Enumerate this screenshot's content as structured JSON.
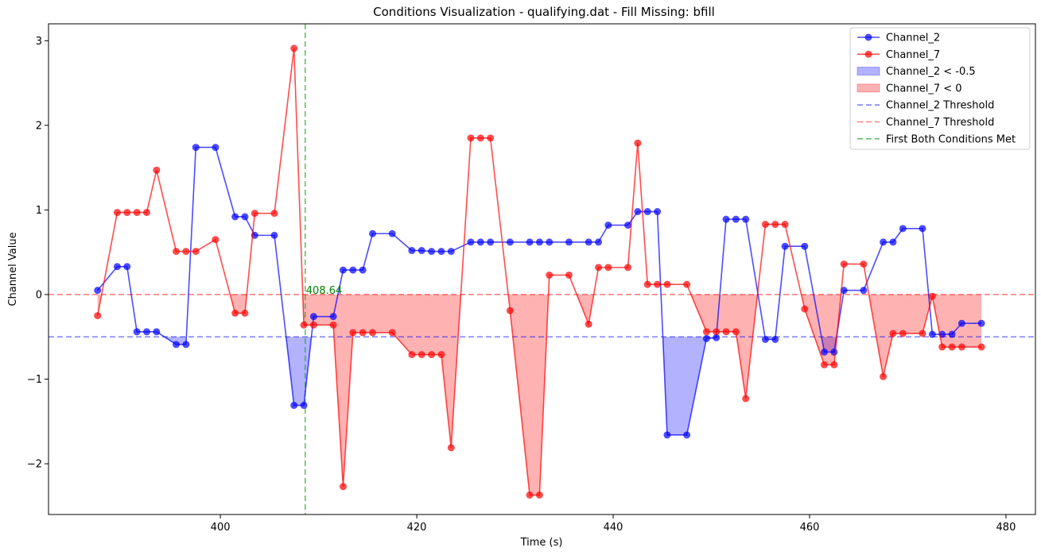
{
  "chart_data": {
    "type": "line",
    "title": "Conditions Visualization - qualifying.dat - Fill Missing: bfill",
    "xlabel": "Time (s)",
    "ylabel": "Channel Value",
    "xlim": [
      382.5,
      483.0
    ],
    "ylim": [
      -2.6,
      3.2
    ],
    "xticks": [
      400,
      420,
      440,
      460,
      480
    ],
    "yticks": [
      -2,
      -1,
      0,
      1,
      2,
      3
    ],
    "x": [
      387.5,
      389.5,
      390.5,
      391.5,
      392.5,
      393.5,
      395.5,
      396.5,
      397.5,
      399.5,
      401.5,
      402.5,
      403.5,
      405.5,
      407.5,
      408.5,
      409.5,
      411.5,
      412.5,
      413.5,
      414.5,
      415.5,
      417.5,
      419.5,
      420.5,
      421.5,
      422.5,
      423.5,
      425.5,
      426.5,
      427.5,
      429.5,
      431.5,
      432.5,
      433.5,
      435.5,
      437.5,
      438.5,
      439.5,
      441.5,
      442.5,
      443.5,
      444.5,
      445.5,
      447.5,
      449.5,
      450.5,
      451.5,
      452.5,
      453.5,
      455.5,
      456.5,
      457.5,
      459.5,
      461.5,
      462.5,
      463.5,
      465.5,
      467.5,
      468.5,
      469.5,
      471.5,
      472.5,
      473.5,
      474.5,
      475.5,
      477.5
    ],
    "series": [
      {
        "name": "Channel_2",
        "color": "#0000ff",
        "values": [
          0.05,
          0.33,
          0.33,
          -0.44,
          -0.44,
          -0.44,
          -0.59,
          -0.59,
          1.74,
          1.74,
          0.92,
          0.92,
          0.7,
          0.7,
          -1.31,
          -1.31,
          -0.26,
          -0.26,
          0.29,
          0.29,
          0.29,
          0.72,
          0.72,
          0.52,
          0.52,
          0.51,
          0.51,
          0.51,
          0.62,
          0.62,
          0.62,
          0.62,
          0.62,
          0.62,
          0.62,
          0.62,
          0.62,
          0.62,
          0.82,
          0.82,
          0.98,
          0.98,
          0.98,
          -1.66,
          -1.66,
          -0.52,
          -0.51,
          0.89,
          0.89,
          0.89,
          -0.53,
          -0.53,
          0.57,
          0.57,
          -0.68,
          -0.68,
          0.05,
          0.05,
          0.62,
          0.62,
          0.78,
          0.78,
          -0.47,
          -0.47,
          -0.47,
          -0.34,
          -0.34
        ]
      },
      {
        "name": "Channel_7",
        "color": "#ff0000",
        "values": [
          -0.25,
          0.97,
          0.97,
          0.97,
          0.97,
          1.47,
          0.51,
          0.51,
          0.51,
          0.65,
          -0.22,
          -0.22,
          0.96,
          0.96,
          2.91,
          -0.36,
          -0.36,
          -0.36,
          -2.27,
          -0.45,
          -0.45,
          -0.45,
          -0.45,
          -0.71,
          -0.71,
          -0.71,
          -0.71,
          -1.81,
          1.85,
          1.85,
          1.85,
          -0.19,
          -2.37,
          -2.37,
          0.23,
          0.23,
          -0.35,
          0.32,
          0.32,
          0.32,
          1.79,
          0.12,
          0.12,
          0.12,
          0.12,
          -0.44,
          -0.44,
          -0.44,
          -0.44,
          -1.23,
          0.83,
          0.83,
          0.83,
          -0.17,
          -0.83,
          -0.83,
          0.36,
          0.36,
          -0.97,
          -0.46,
          -0.46,
          -0.46,
          -0.02,
          -0.62,
          -0.62,
          -0.62,
          -0.62
        ]
      }
    ],
    "thresholds": [
      {
        "name": "Channel_2 Threshold",
        "value": -0.5,
        "color": "#0000ff"
      },
      {
        "name": "Channel_7 Threshold",
        "value": 0,
        "color": "#ff0000"
      }
    ],
    "fills": [
      {
        "name": "Channel_2 < -0.5",
        "series": 0,
        "threshold": -0.5,
        "color": "#0000ff"
      },
      {
        "name": "Channel_7 < 0",
        "series": 1,
        "threshold": 0,
        "color": "#ff0000"
      }
    ],
    "vline": {
      "name": "First Both Conditions Met",
      "x": 408.64,
      "color": "#2ca02c",
      "label": "408.64"
    },
    "legend": {
      "placement": "upper right"
    },
    "grid": false
  }
}
